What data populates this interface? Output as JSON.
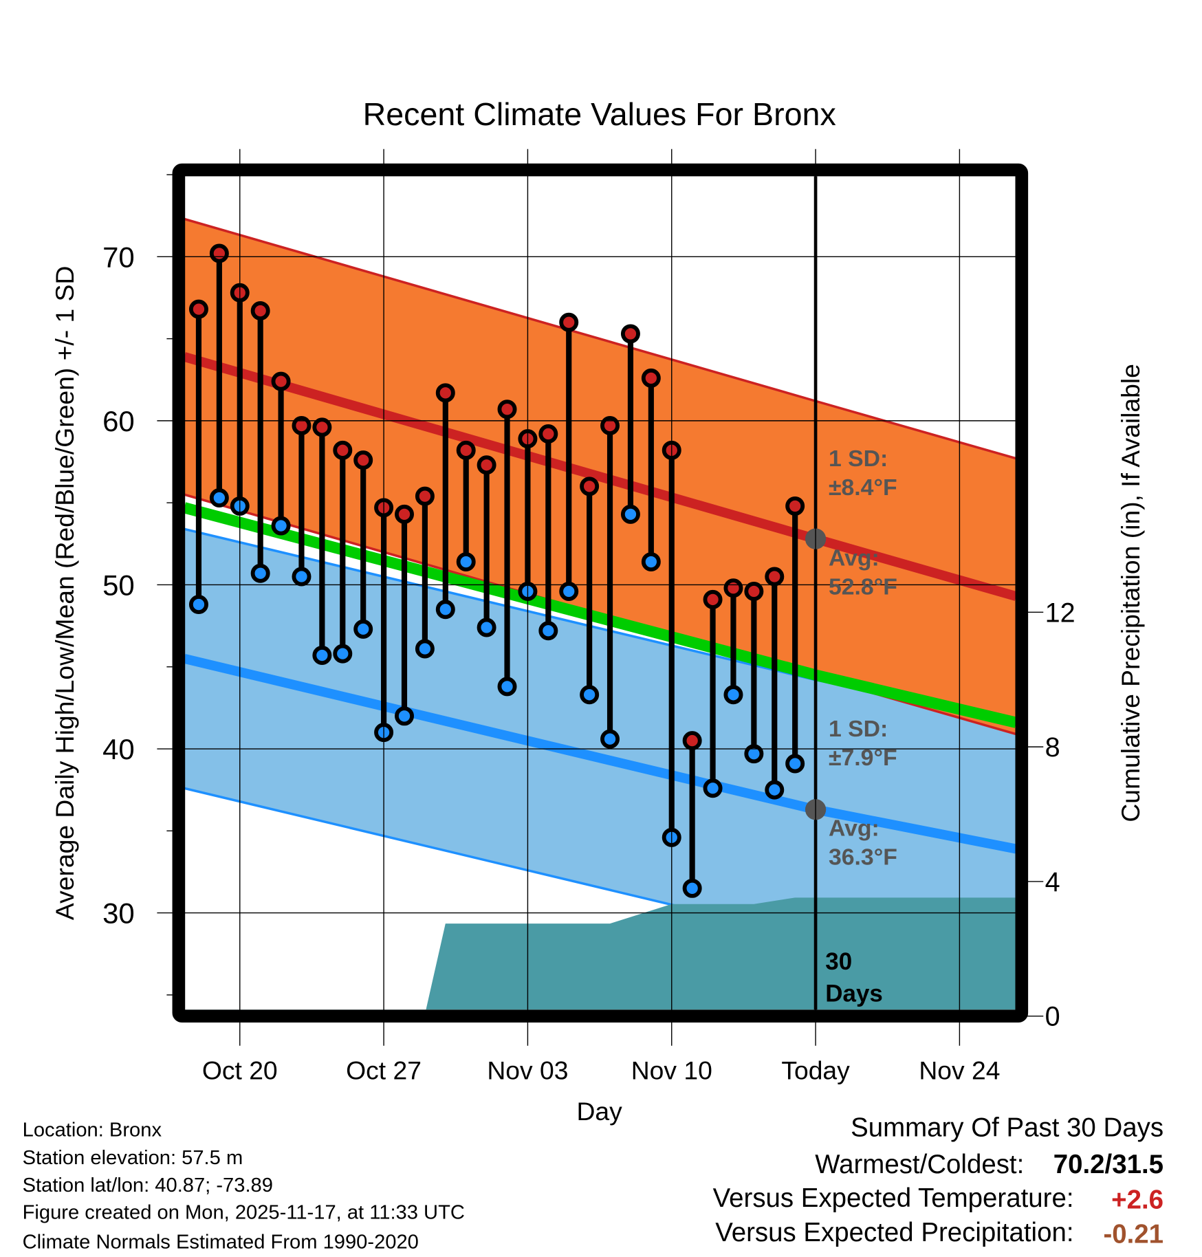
{
  "chart_data": {
    "type": "line",
    "title": "Recent Climate Values For Bronx",
    "xlabel": "Day",
    "ylabel": "Average Daily High/Low/Mean (Red/Blue/Green) +/- 1 SD",
    "y2label": "Cumulative Precipitation (in), If Available",
    "x_units": "days from Oct 20",
    "xlim": [
      -2.7,
      37.75
    ],
    "ylim": [
      24.1,
      74.9
    ],
    "y2lim": [
      0,
      24.8
    ],
    "x_ticks": [
      {
        "x": 0,
        "label": "Oct 20"
      },
      {
        "x": 7,
        "label": "Oct 27"
      },
      {
        "x": 14,
        "label": "Nov 03"
      },
      {
        "x": 21,
        "label": "Nov 10"
      },
      {
        "x": 28,
        "label": "Today"
      },
      {
        "x": 35,
        "label": "Nov 24"
      }
    ],
    "y_ticks": [
      30,
      40,
      50,
      60,
      70
    ],
    "y_minor_ticks": [
      25,
      35,
      45,
      55,
      65,
      75
    ],
    "y2_ticks": [
      0,
      4,
      8,
      12
    ],
    "grid": true,
    "today_x": 28,
    "window_label": [
      "30",
      "Days"
    ],
    "daily": {
      "start_x": -2,
      "high": [
        66.8,
        70.2,
        67.8,
        66.7,
        62.4,
        59.7,
        59.6,
        58.2,
        57.6,
        54.7,
        54.3,
        55.4,
        61.7,
        58.2,
        57.3,
        60.7,
        58.9,
        59.2,
        66.0,
        56.0,
        59.7,
        65.3,
        62.6,
        58.2,
        40.5,
        49.1,
        49.8,
        49.6,
        50.5,
        54.8
      ],
      "low": [
        48.8,
        55.3,
        54.8,
        50.7,
        53.6,
        50.5,
        45.7,
        45.8,
        47.3,
        41.0,
        42.0,
        46.1,
        48.5,
        51.4,
        47.4,
        43.8,
        49.6,
        47.2,
        49.6,
        43.3,
        40.6,
        54.3,
        51.4,
        34.6,
        31.5,
        37.6,
        43.3,
        39.7,
        37.5,
        39.1
      ]
    },
    "normals": {
      "x": [
        -2.7,
        28,
        37.75
      ],
      "high_mean": [
        63.9,
        52.8,
        49.3
      ],
      "high_sd": 8.4,
      "low_mean": [
        45.5,
        36.3,
        33.9
      ],
      "low_sd": 7.9,
      "mean": [
        54.7,
        44.5,
        41.6
      ]
    },
    "precip": {
      "x": [
        -2.7,
        2,
        2,
        9,
        10,
        18,
        21,
        25,
        27,
        37.75
      ],
      "y": [
        0,
        0,
        0.05,
        0.05,
        2.75,
        2.75,
        3.33,
        3.33,
        3.52,
        3.52
      ]
    },
    "annotations": {
      "high_sd_label": "1 SD:",
      "high_sd_value": "±8.4°F",
      "high_avg_label": "Avg:",
      "high_avg_value": "52.8°F",
      "low_sd_label": "1 SD:",
      "low_sd_value": "±7.9°F",
      "low_avg_label": "Avg:",
      "low_avg_value": "36.3°F"
    },
    "colors": {
      "high": "#cc2222",
      "low": "#1e90ff",
      "high_band": "#f57a30",
      "low_band": "#84c0e8",
      "mean": "#00cc00",
      "precip": "#4a9ba5",
      "summary_temp": "#cc2222",
      "summary_precip": "#a0522d"
    }
  },
  "info": [
    "Location: Bronx",
    "Station elevation: 57.5 m",
    "Station lat/lon: 40.87; -73.89",
    "Figure created on Mon, 2025-11-17, at 11:33 UTC",
    "Climate Normals Estimated From 1990-2020"
  ],
  "summary": {
    "title": "Summary Of Past 30 Days",
    "warm_cold_label": "Warmest/Coldest:",
    "warm_cold_value": "70.2/31.5",
    "temp_label": "Versus Expected Temperature:",
    "temp_value": "+2.6",
    "precip_label": "Versus Expected Precipitation:",
    "precip_value": "-0.21"
  }
}
